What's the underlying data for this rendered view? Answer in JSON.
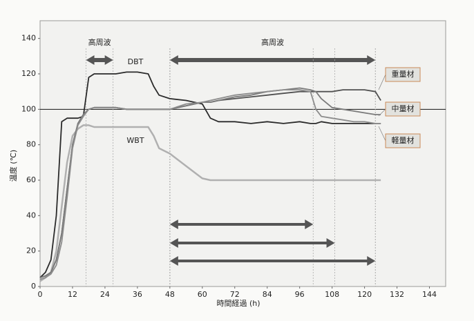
{
  "chart_data": {
    "type": "line",
    "xlabel": "時間経過 (h)",
    "ylabel": "温度 (℃)",
    "xlim": [
      0,
      150
    ],
    "ylim": [
      0,
      150
    ],
    "xticks": [
      0,
      12,
      24,
      36,
      48,
      60,
      72,
      84,
      96,
      108,
      120,
      132,
      144
    ],
    "yticks": [
      0,
      20,
      40,
      60,
      80,
      100,
      120,
      140
    ],
    "hline": 100,
    "x": [
      0,
      2,
      4,
      6,
      8,
      10,
      12,
      14,
      16,
      18,
      20,
      24,
      28,
      32,
      36,
      40,
      42,
      44,
      48,
      54,
      60,
      63,
      66,
      72,
      78,
      84,
      90,
      96,
      100,
      102,
      104,
      108,
      112,
      116,
      120,
      124,
      126
    ],
    "series": [
      {
        "name": "DBT",
        "color": "#2a2a2a",
        "values": [
          5,
          8,
          15,
          40,
          93,
          95,
          95,
          95,
          96,
          118,
          120,
          120,
          120,
          121,
          121,
          120,
          113,
          108,
          106,
          105,
          103,
          95,
          93,
          93,
          92,
          93,
          92,
          93,
          92,
          92,
          93,
          92,
          92,
          92,
          92,
          92,
          92
        ]
      },
      {
        "name": "WBT",
        "color": "#b0b0b0",
        "values": [
          3,
          5,
          8,
          20,
          45,
          70,
          85,
          89,
          91,
          91,
          90,
          90,
          90,
          90,
          90,
          90,
          85,
          78,
          75,
          68,
          61,
          60,
          60,
          60,
          60,
          60,
          60,
          60,
          60,
          60,
          60,
          60,
          60,
          60,
          60,
          60,
          60
        ]
      },
      {
        "name": "重量材",
        "color": "#505050",
        "values": [
          5,
          6,
          8,
          15,
          30,
          55,
          80,
          92,
          97,
          100,
          101,
          101,
          101,
          100,
          100,
          100,
          100,
          100,
          100,
          102,
          104,
          104,
          105,
          106,
          107,
          108,
          109,
          110,
          110,
          110,
          110,
          110,
          111,
          111,
          111,
          110,
          105
        ]
      },
      {
        "name": "中量材",
        "color": "#7a7a7a",
        "values": [
          5,
          6,
          8,
          15,
          30,
          55,
          80,
          92,
          97,
          100,
          101,
          101,
          101,
          100,
          100,
          100,
          100,
          100,
          100,
          102,
          104,
          104,
          105,
          107,
          108,
          110,
          111,
          112,
          111,
          110,
          106,
          101,
          100,
          99,
          98,
          97,
          97
        ]
      },
      {
        "name": "軽量材",
        "color": "#8c8c8c",
        "values": [
          4,
          5,
          7,
          12,
          25,
          50,
          78,
          91,
          96,
          100,
          101,
          101,
          101,
          100,
          100,
          100,
          100,
          100,
          100,
          103,
          104,
          105,
          106,
          108,
          109,
          110,
          111,
          111,
          110,
          100,
          96,
          95,
          94,
          93,
          93,
          92,
          92
        ]
      }
    ],
    "arrows": [
      {
        "text": "高周波",
        "x": [
          17,
          27
        ]
      },
      {
        "text": "高周波",
        "x": [
          48,
          124
        ]
      },
      {
        "x": [
          48,
          101
        ]
      },
      {
        "x": [
          48,
          109
        ]
      },
      {
        "x": [
          48,
          124
        ]
      }
    ]
  }
}
